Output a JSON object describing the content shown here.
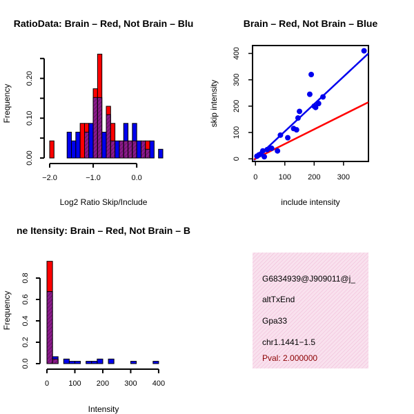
{
  "colors": {
    "red": "#ff0000",
    "blue": "#0000ee",
    "purple": "#8b1a8b",
    "pink": "#f7d6e8",
    "darkred": "#8b0000"
  },
  "chart_data": [
    {
      "type": "histogram",
      "title": "RatioData: Brain – Red, Not Brain – Blu",
      "xlabel": "Log2 Ratio Skip/Include",
      "ylabel": "Frequency",
      "xlim": [
        -2.0,
        0.6
      ],
      "ylim": [
        0,
        0.26
      ],
      "xticks": [
        -2.0,
        -1.0,
        0.0
      ],
      "xtick_labels": [
        "−2.0",
        "−1.0",
        "0.0"
      ],
      "yticks": [
        0.0,
        0.1,
        0.2
      ],
      "ytick_labels": [
        "0.00",
        "0.10",
        "0.20"
      ],
      "bin_width": 0.1,
      "series": [
        {
          "name": "Brain",
          "color": "red",
          "bins": [
            [
              -2.0,
              0.043
            ],
            [
              -1.3,
              0.087
            ],
            [
              -1.2,
              0.087
            ],
            [
              -1.0,
              0.174
            ],
            [
              -0.9,
              0.261
            ],
            [
              -0.7,
              0.13
            ],
            [
              -0.6,
              0.087
            ],
            [
              -0.4,
              0.043
            ],
            [
              -0.3,
              0.043
            ],
            [
              -0.2,
              0.043
            ],
            [
              -0.1,
              0.043
            ],
            [
              0.1,
              0.043
            ],
            [
              0.2,
              0.043
            ]
          ]
        },
        {
          "name": "Not Brain",
          "color": "blue",
          "bins": [
            [
              -1.6,
              0.065
            ],
            [
              -1.5,
              0.043
            ],
            [
              -1.4,
              0.065
            ],
            [
              -1.2,
              0.065
            ],
            [
              -1.1,
              0.087
            ],
            [
              -1.0,
              0.152
            ],
            [
              -0.9,
              0.152
            ],
            [
              -0.8,
              0.065
            ],
            [
              -0.7,
              0.109
            ],
            [
              -0.6,
              0.043
            ],
            [
              -0.5,
              0.043
            ],
            [
              -0.4,
              0.043
            ],
            [
              -0.3,
              0.087
            ],
            [
              -0.2,
              0.043
            ],
            [
              -0.1,
              0.087
            ],
            [
              0.0,
              0.043
            ],
            [
              0.1,
              0.043
            ],
            [
              0.2,
              0.022
            ],
            [
              0.3,
              0.043
            ],
            [
              0.5,
              0.022
            ]
          ]
        }
      ]
    },
    {
      "type": "scatter",
      "title": "Brain – Red, Not Brain – Blue",
      "xlabel": "include intensity",
      "ylabel": "skip intensity",
      "xlim": [
        -10,
        385
      ],
      "ylim": [
        -10,
        430
      ],
      "xticks": [
        0,
        100,
        200,
        300
      ],
      "yticks": [
        0,
        100,
        200,
        300,
        400
      ],
      "points": [
        [
          5,
          10
        ],
        [
          12,
          15
        ],
        [
          18,
          18
        ],
        [
          25,
          30
        ],
        [
          30,
          8
        ],
        [
          40,
          35
        ],
        [
          55,
          40
        ],
        [
          75,
          30
        ],
        [
          85,
          90
        ],
        [
          110,
          80
        ],
        [
          130,
          115
        ],
        [
          140,
          110
        ],
        [
          145,
          155
        ],
        [
          150,
          180
        ],
        [
          185,
          245
        ],
        [
          190,
          320
        ],
        [
          200,
          200
        ],
        [
          205,
          195
        ],
        [
          215,
          210
        ],
        [
          230,
          235
        ],
        [
          370,
          410
        ]
      ],
      "lines": [
        {
          "name": "blue fit",
          "color": "blue",
          "from": [
            -5,
            -5
          ],
          "to": [
            385,
            400
          ]
        },
        {
          "name": "red fit",
          "color": "red",
          "from": [
            -5,
            -2
          ],
          "to": [
            385,
            215
          ]
        }
      ]
    },
    {
      "type": "histogram",
      "title": "ne Itensity: Brain – Red, Not Brain – B",
      "xlabel": "Intensity",
      "ylabel": "Frequency",
      "xlim": [
        -5,
        420
      ],
      "ylim": [
        0,
        1.0
      ],
      "xticks": [
        0,
        100,
        200,
        300,
        400
      ],
      "yticks": [
        0.0,
        0.2,
        0.4,
        0.6,
        0.8
      ],
      "bin_width": 20,
      "series": [
        {
          "name": "Brain",
          "color": "red",
          "bins": [
            [
              0,
              0.957
            ],
            [
              20,
              0.043
            ]
          ]
        },
        {
          "name": "Not Brain",
          "color": "blue",
          "bins": [
            [
              0,
              0.674
            ],
            [
              20,
              0.065
            ],
            [
              60,
              0.043
            ],
            [
              80,
              0.022
            ],
            [
              100,
              0.022
            ],
            [
              140,
              0.022
            ],
            [
              160,
              0.022
            ],
            [
              180,
              0.043
            ],
            [
              220,
              0.043
            ],
            [
              300,
              0.022
            ],
            [
              380,
              0.022
            ]
          ]
        }
      ]
    }
  ],
  "info_panel": {
    "id_line": "G6834939@J909011@j_",
    "event_type": "altTxEnd",
    "gene": "Gpa33",
    "location": "chr1.1441−1.5",
    "pval": "Pval: 2.000000"
  }
}
